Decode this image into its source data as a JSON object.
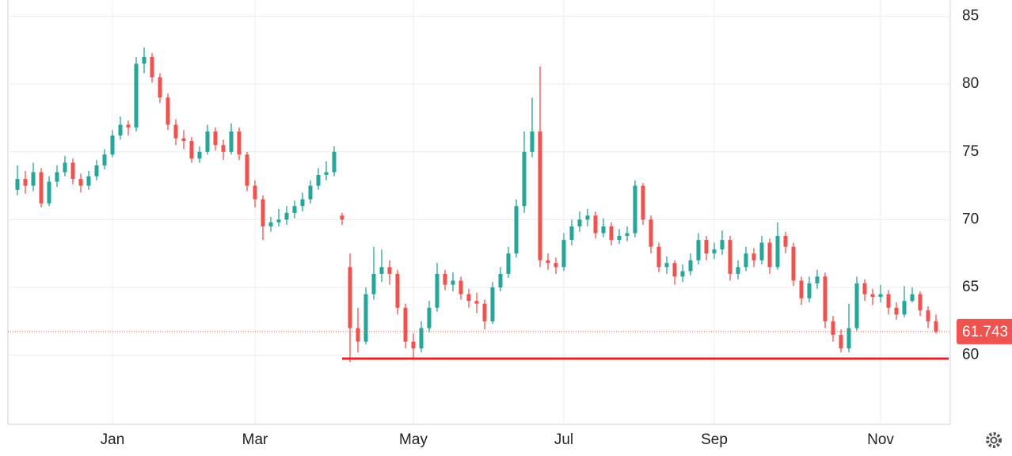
{
  "chart_data": {
    "type": "candlestick",
    "categories": [
      null,
      null,
      null,
      null,
      null,
      null,
      null,
      null,
      null,
      null,
      null,
      null,
      "Jan",
      null,
      null,
      null,
      null,
      null,
      null,
      null,
      null,
      null,
      null,
      null,
      null,
      null,
      null,
      null,
      null,
      null,
      "Mar",
      null,
      null,
      null,
      null,
      null,
      null,
      null,
      null,
      null,
      null,
      null,
      null,
      null,
      null,
      null,
      null,
      null,
      null,
      null,
      "May",
      null,
      null,
      null,
      null,
      null,
      null,
      null,
      null,
      null,
      null,
      null,
      null,
      null,
      null,
      null,
      null,
      null,
      null,
      "Jul",
      null,
      null,
      null,
      null,
      null,
      null,
      null,
      null,
      null,
      null,
      null,
      null,
      null,
      null,
      null,
      null,
      null,
      null,
      "Sep",
      null,
      null,
      null,
      null,
      null,
      null,
      null,
      null,
      null,
      null,
      null,
      null,
      null,
      null,
      null,
      null,
      null,
      null,
      null,
      null,
      "Nov",
      null,
      null,
      null,
      null,
      null,
      null,
      null
    ],
    "open": [
      72.2,
      73,
      72.5,
      73.5,
      71.2,
      72.8,
      73.5,
      74.2,
      73,
      72.5,
      73.2,
      74,
      74.8,
      76.2,
      77,
      76.8,
      81.5,
      82,
      80.5,
      79,
      77,
      76,
      75.8,
      74.5,
      75,
      76.5,
      75.5,
      75,
      76.5,
      74.8,
      72.5,
      71.5,
      69.5,
      69.8,
      70,
      70.5,
      71,
      71.5,
      72.5,
      73.3,
      73.5,
      70.3,
      66.5,
      62,
      61,
      64.5,
      66,
      66.5,
      66,
      63.5,
      61,
      60.5,
      62,
      63.5,
      66,
      65.2,
      65.5,
      64.5,
      64,
      63.8,
      62.5,
      65,
      66,
      67.5,
      71,
      75,
      76.5,
      67,
      66.8,
      66.5,
      68.5,
      69.5,
      70,
      70.3,
      69,
      69.5,
      68.5,
      68.8,
      69,
      72.5,
      70,
      68,
      66.5,
      66.8,
      65.8,
      66.2,
      67,
      68.5,
      67.5,
      67.8,
      68.5,
      66,
      66.5,
      67.5,
      67,
      68.3,
      66.5,
      68.8,
      68,
      65.5,
      64.2,
      65.3,
      65.8,
      62.5,
      61.5,
      60.5,
      62,
      65.3,
      64.5,
      64.3,
      64.5,
      63.5,
      63,
      64,
      64.5,
      63.3,
      62.5
    ],
    "high": [
      74,
      73.6,
      74.2,
      73.8,
      73.2,
      74,
      74.7,
      74.5,
      73.4,
      73.6,
      74.4,
      75.2,
      76.6,
      77.6,
      77.3,
      82,
      82.7,
      82.3,
      80.8,
      79.3,
      77.4,
      76.6,
      76.1,
      75.4,
      77,
      76.8,
      75.9,
      77.1,
      76.8,
      75,
      72.9,
      71.8,
      70.2,
      70.8,
      71,
      71.4,
      72,
      72.9,
      73.8,
      74.3,
      75.4,
      70.5,
      67.5,
      63.5,
      65,
      68,
      67.8,
      67,
      66.3,
      63.8,
      61.6,
      62.5,
      64,
      66.8,
      66.3,
      66.1,
      65.8,
      64.9,
      64.6,
      64.1,
      65.4,
      66.5,
      68,
      71.5,
      76.5,
      79,
      81.3,
      67.5,
      67.2,
      69,
      70,
      70.6,
      70.8,
      70.6,
      70.1,
      69.8,
      69.3,
      69.5,
      72.9,
      72.7,
      70.3,
      68.3,
      67.3,
      67,
      66.7,
      67.5,
      69,
      68.8,
      68.3,
      69.2,
      68.8,
      67,
      68,
      67.9,
      68.8,
      68.6,
      69.8,
      69.1,
      68.3,
      65.8,
      65.8,
      66.3,
      66.1,
      62.9,
      61.9,
      63.8,
      65.8,
      65.6,
      64.9,
      65.2,
      64.8,
      63.9,
      65.1,
      65,
      64.7,
      63.6,
      63
    ],
    "low": [
      71.8,
      71.9,
      72.1,
      70.9,
      71,
      72.4,
      73.2,
      72.6,
      72,
      72.2,
      72.9,
      73.7,
      74.6,
      75.9,
      76.2,
      76.5,
      80.8,
      80.1,
      78.6,
      76.6,
      75.5,
      75.2,
      74.2,
      74.2,
      74.8,
      75.1,
      74.4,
      74.8,
      74.4,
      72.1,
      70.9,
      68.5,
      69.1,
      69.5,
      69.6,
      70.1,
      70.6,
      71.2,
      72.2,
      72.9,
      73.2,
      69.6,
      59.5,
      60.2,
      60.8,
      64.1,
      65.4,
      65.2,
      63,
      60.5,
      59.8,
      60.2,
      61.7,
      63.2,
      64.8,
      64.7,
      64.1,
      63.5,
      63.1,
      61.9,
      62.3,
      64.7,
      65.7,
      67.2,
      70.5,
      74.6,
      66.5,
      66.3,
      66,
      66.2,
      68.1,
      69.1,
      69.5,
      68.6,
      68.7,
      68.1,
      68.2,
      68.4,
      68.7,
      69.6,
      67.5,
      66.1,
      66,
      65.2,
      65.4,
      65.9,
      66.7,
      67,
      67.1,
      67.4,
      65.5,
      65.6,
      66.2,
      66.5,
      66.7,
      66,
      66.3,
      67.5,
      65.1,
      63.7,
      63.9,
      64.9,
      62,
      61,
      60.2,
      60.2,
      61.8,
      64,
      63.7,
      63.9,
      63,
      62.6,
      62.8,
      63.9,
      62.9,
      62,
      61.6
    ],
    "close": [
      73,
      72.5,
      73.5,
      71.2,
      72.8,
      73.5,
      74.2,
      73,
      72.5,
      73.2,
      74,
      74.8,
      76.2,
      77,
      76.8,
      81.5,
      82,
      80.5,
      79,
      77,
      76,
      75.8,
      74.5,
      75,
      76.5,
      75.5,
      75,
      76.5,
      74.8,
      72.5,
      71.5,
      69.5,
      69.8,
      70,
      70.5,
      71,
      71.5,
      72.5,
      73.3,
      73.5,
      75,
      70,
      62,
      61,
      64.5,
      66,
      66.5,
      66,
      63.5,
      61,
      60.5,
      62,
      63.5,
      66,
      65.2,
      65.5,
      64.5,
      64,
      63.8,
      62.5,
      65,
      66,
      67.5,
      71,
      75,
      76.5,
      67,
      66.8,
      66.5,
      68.5,
      69.5,
      70,
      70.3,
      69,
      69.5,
      68.5,
      68.8,
      69,
      72.5,
      70,
      68,
      66.5,
      66.8,
      65.8,
      66.2,
      67,
      68.5,
      67.5,
      67.8,
      68.5,
      66,
      66.5,
      67.5,
      67,
      68.3,
      66.5,
      68.8,
      68,
      65.5,
      64.2,
      65.3,
      65.8,
      62.5,
      61.5,
      60.5,
      62,
      65.3,
      64.5,
      64.3,
      64.5,
      63.5,
      63,
      64,
      64.5,
      63.3,
      62.5,
      61.743
    ],
    "up_color": "#26a69a",
    "down_color": "#ef5350",
    "ylim": [
      54.9,
      86.2
    ],
    "yticks": [
      60,
      65,
      70,
      75,
      80,
      85
    ],
    "grid": true,
    "last_price": 61.743,
    "support_line": {
      "start": 41,
      "value": 59.75,
      "color": "#e8232a"
    }
  }
}
